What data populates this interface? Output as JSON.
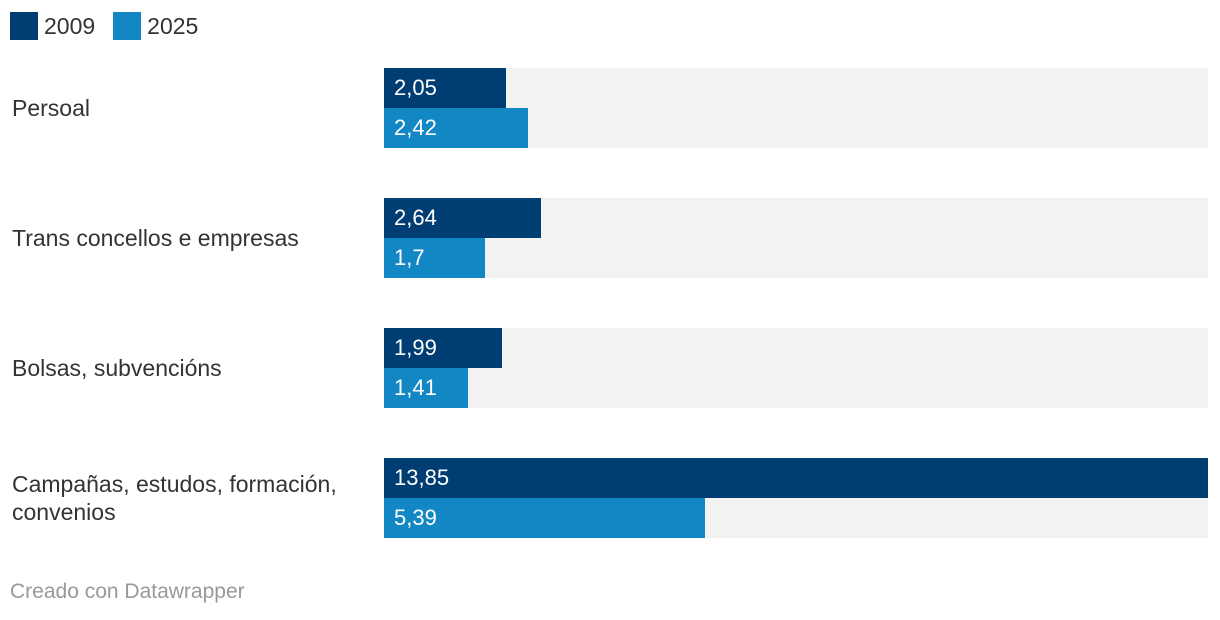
{
  "chart_data": {
    "type": "bar",
    "orientation": "horizontal",
    "categories": [
      "Persoal",
      "Trans concellos e empresas",
      "Bolsas, subvencións",
      "Campañas, estudos, formación, convenios"
    ],
    "series": [
      {
        "name": "2009",
        "color": "#003d73",
        "values": [
          2.05,
          2.64,
          1.99,
          13.85
        ],
        "labels": [
          "2,05",
          "2,64",
          "1,99",
          "13,85"
        ]
      },
      {
        "name": "2025",
        "color": "#1386c4",
        "values": [
          2.42,
          1.7,
          1.41,
          5.39
        ],
        "labels": [
          "2,42",
          "1,7",
          "1,41",
          "5,39"
        ]
      }
    ],
    "xlim": [
      0,
      13.85
    ],
    "legend": "top-left"
  },
  "footer": {
    "credit": "Creado con Datawrapper"
  }
}
